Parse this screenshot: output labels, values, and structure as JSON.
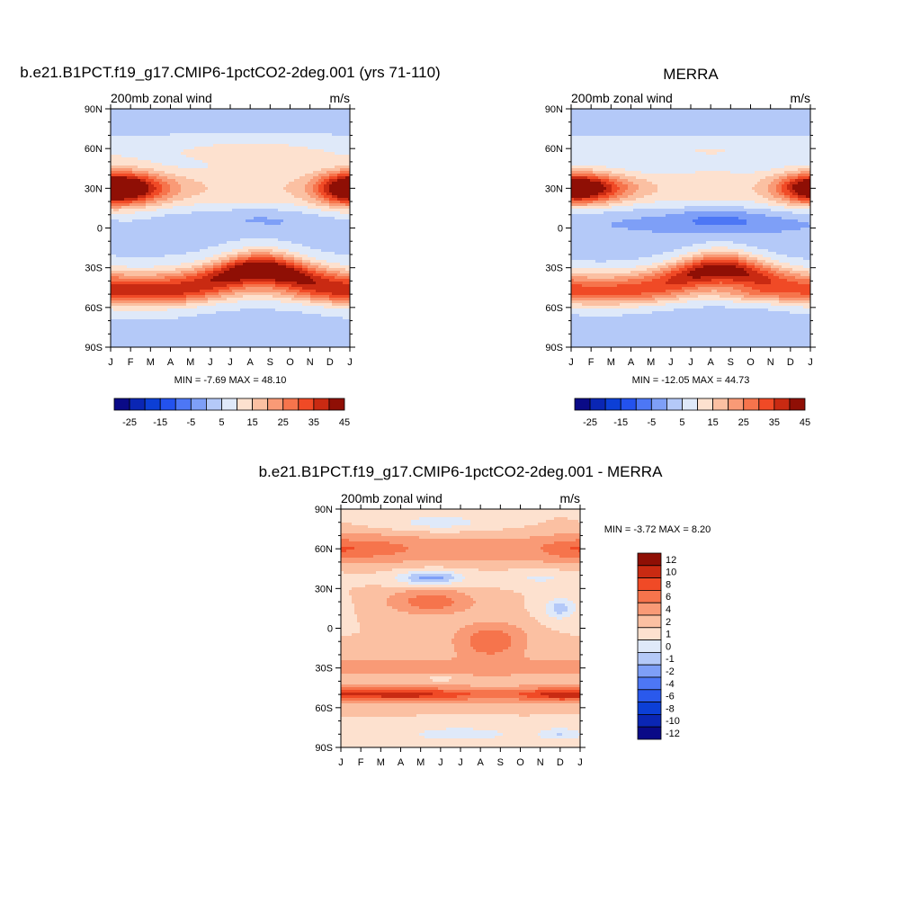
{
  "colormaps": {
    "full": {
      "colors": [
        "#0a0a87",
        "#0a26b4",
        "#0c3fd6",
        "#2352ee",
        "#4d77f5",
        "#7e9ff7",
        "#b4c9f8",
        "#dfe9f9",
        "#fde1cf",
        "#fbc0a2",
        "#f99a76",
        "#f6744c",
        "#f04a26",
        "#c92a12",
        "#8f0f05"
      ],
      "tick_labels": [
        "-25",
        "-15",
        "-5",
        "5",
        "15",
        "25",
        "35",
        "45"
      ]
    },
    "diff": {
      "colors": [
        "#0a0a87",
        "#0a26b4",
        "#0c3fd6",
        "#2a59ec",
        "#4d77f5",
        "#7e9ff7",
        "#b4c9f8",
        "#dfe9f9",
        "#fde1cf",
        "#fbc0a2",
        "#f99a76",
        "#f6744c",
        "#f04a26",
        "#c92a12",
        "#8f0f05"
      ],
      "tick_labels": [
        "12",
        "10",
        "8",
        "6",
        "4",
        "2",
        "1",
        "0",
        "-1",
        "-2",
        "-4",
        "-6",
        "-8",
        "-10",
        "-12"
      ]
    }
  },
  "axes": {
    "x_ticks": [
      "J",
      "F",
      "M",
      "A",
      "M",
      "J",
      "J",
      "A",
      "S",
      "O",
      "N",
      "D",
      "J"
    ],
    "y_ticks": [
      "90N",
      "60N",
      "30N",
      "0",
      "30S",
      "60S",
      "90S"
    ]
  },
  "panels": [
    {
      "id": "model",
      "title": "b.e21.B1PCT.f19_g17.CMIP6-1pctCO2-2deg.001 (yrs 71-110)",
      "left_label": "200mb zonal wind",
      "right_label": "m/s",
      "stats": "MIN =  -7.69 MAX =  48.10"
    },
    {
      "id": "merra",
      "title": "MERRA",
      "left_label": "200mb zonal wind",
      "right_label": "m/s",
      "stats": "MIN = -12.05 MAX =  44.73"
    },
    {
      "id": "diff",
      "title": "b.e21.B1PCT.f19_g17.CMIP6-1pctCO2-2deg.001 - MERRA",
      "left_label": "200mb zonal wind",
      "right_label": "m/s",
      "stats": "MIN =  -3.72 MAX =   8.20"
    }
  ],
  "chart_data": [
    {
      "type": "heatmap",
      "title": "b.e21.B1PCT.f19_g17.CMIP6-1pctCO2-2deg.001 (yrs 71-110)",
      "subtitle_left": "200mb zonal wind",
      "subtitle_right": "m/s",
      "x_categories": [
        "J",
        "F",
        "M",
        "A",
        "M",
        "J",
        "J",
        "A",
        "S",
        "O",
        "N",
        "D",
        "J"
      ],
      "y_categories": [
        "90N",
        "60N",
        "30N",
        "0",
        "30S",
        "60S",
        "90S"
      ],
      "min": -7.69,
      "max": 48.1,
      "color_levels": [
        -25,
        -15,
        -5,
        5,
        15,
        25,
        35,
        45
      ],
      "features": [
        {
          "lat": 29,
          "month": 1.0,
          "value": 44
        },
        {
          "lat": 30,
          "month": 12.0,
          "value": 40
        },
        {
          "lat": 5,
          "month": 7.3,
          "value": -7
        },
        {
          "lat": -28,
          "month": 7.6,
          "value": 48
        },
        {
          "lat": -50,
          "month": 0.5,
          "value": 35
        },
        {
          "lat": -50,
          "month": 11.5,
          "value": 33
        }
      ]
    },
    {
      "type": "heatmap",
      "title": "MERRA",
      "subtitle_left": "200mb zonal wind",
      "subtitle_right": "m/s",
      "x_categories": [
        "J",
        "F",
        "M",
        "A",
        "M",
        "J",
        "J",
        "A",
        "S",
        "O",
        "N",
        "D",
        "J"
      ],
      "y_categories": [
        "90N",
        "60N",
        "30N",
        "0",
        "30S",
        "60S",
        "90S"
      ],
      "min": -12.05,
      "max": 44.73,
      "color_levels": [
        -25,
        -15,
        -5,
        5,
        15,
        25,
        35,
        45
      ],
      "features": [
        {
          "lat": 29,
          "month": 1.0,
          "value": 40
        },
        {
          "lat": 30,
          "month": 12.0,
          "value": 38
        },
        {
          "lat": 5,
          "month": 7.3,
          "value": -12
        },
        {
          "lat": -30,
          "month": 7.5,
          "value": 44
        },
        {
          "lat": -48,
          "month": 0.5,
          "value": 30
        },
        {
          "lat": -50,
          "month": 9.0,
          "value": 30
        }
      ]
    },
    {
      "type": "heatmap",
      "title": "b.e21.B1PCT.f19_g17.CMIP6-1pctCO2-2deg.001 - MERRA",
      "subtitle_left": "200mb zonal wind",
      "subtitle_right": "m/s",
      "x_categories": [
        "J",
        "F",
        "M",
        "A",
        "M",
        "J",
        "J",
        "A",
        "S",
        "O",
        "N",
        "D",
        "J"
      ],
      "y_categories": [
        "90N",
        "60N",
        "30N",
        "0",
        "30S",
        "60S",
        "90S"
      ],
      "min": -3.72,
      "max": 8.2,
      "color_levels": [
        -12,
        -10,
        -8,
        -6,
        -4,
        -2,
        -1,
        0,
        1,
        2,
        4,
        6,
        8,
        10,
        12
      ],
      "features": [
        {
          "lat": 60,
          "month": 1.5,
          "value": 4
        },
        {
          "lat": 60,
          "month": 11.5,
          "value": 3
        },
        {
          "lat": 38,
          "month": 4.5,
          "value": -3.5
        },
        {
          "lat": 20,
          "month": 4.5,
          "value": 5
        },
        {
          "lat": -10,
          "month": 7.5,
          "value": 5
        },
        {
          "lat": -50,
          "month": 2.5,
          "value": 8
        },
        {
          "lat": -50,
          "month": 11.0,
          "value": 6
        },
        {
          "lat": -80,
          "month": 6.0,
          "value": -2
        }
      ]
    }
  ]
}
